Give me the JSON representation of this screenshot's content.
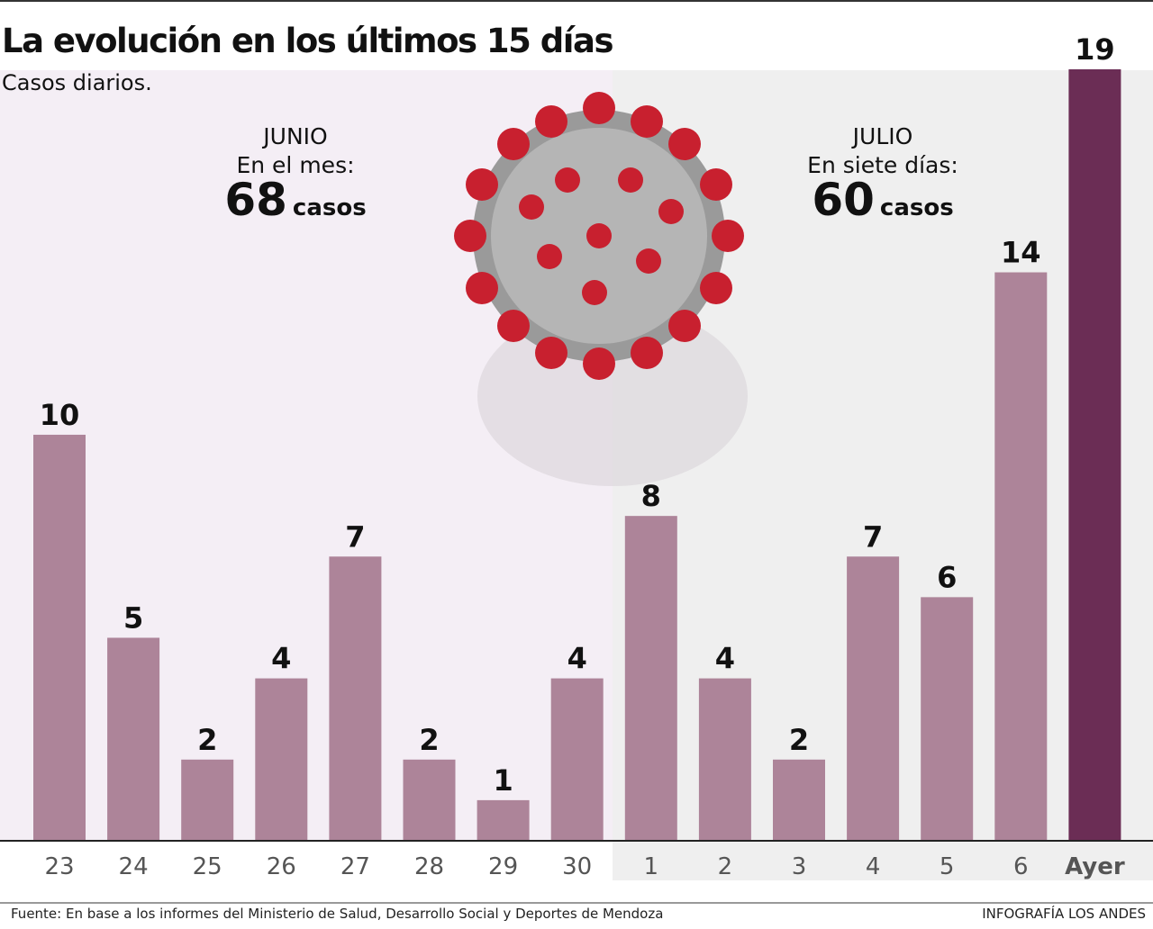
{
  "title": "La evolución en los últimos 15 días",
  "subtitle": "Casos diarios.",
  "chart_data": {
    "type": "bar",
    "categories": [
      "23",
      "24",
      "25",
      "26",
      "27",
      "28",
      "29",
      "30",
      "1",
      "2",
      "3",
      "4",
      "5",
      "6",
      "Ayer"
    ],
    "values": [
      10,
      5,
      2,
      4,
      7,
      2,
      1,
      4,
      8,
      4,
      2,
      7,
      6,
      14,
      19
    ],
    "colors": [
      "#ad8499",
      "#ad8499",
      "#ad8499",
      "#ad8499",
      "#ad8499",
      "#ad8499",
      "#ad8499",
      "#ad8499",
      "#ad8499",
      "#ad8499",
      "#ad8499",
      "#ad8499",
      "#ad8499",
      "#ad8499",
      "#6b2d55"
    ]
  },
  "annotations": {
    "june": {
      "month": "JUNIO",
      "label": "En el mes:",
      "total": 68,
      "unit": "casos"
    },
    "july": {
      "month": "JULIO",
      "label": "En siete días:",
      "total": 60,
      "unit": "casos"
    }
  },
  "footer": {
    "source": "Fuente: En base a los informes del Ministerio de Salud, Desarrollo Social y Deportes de Mendoza",
    "credit": "INFOGRAFÍA LOS ANDES"
  }
}
